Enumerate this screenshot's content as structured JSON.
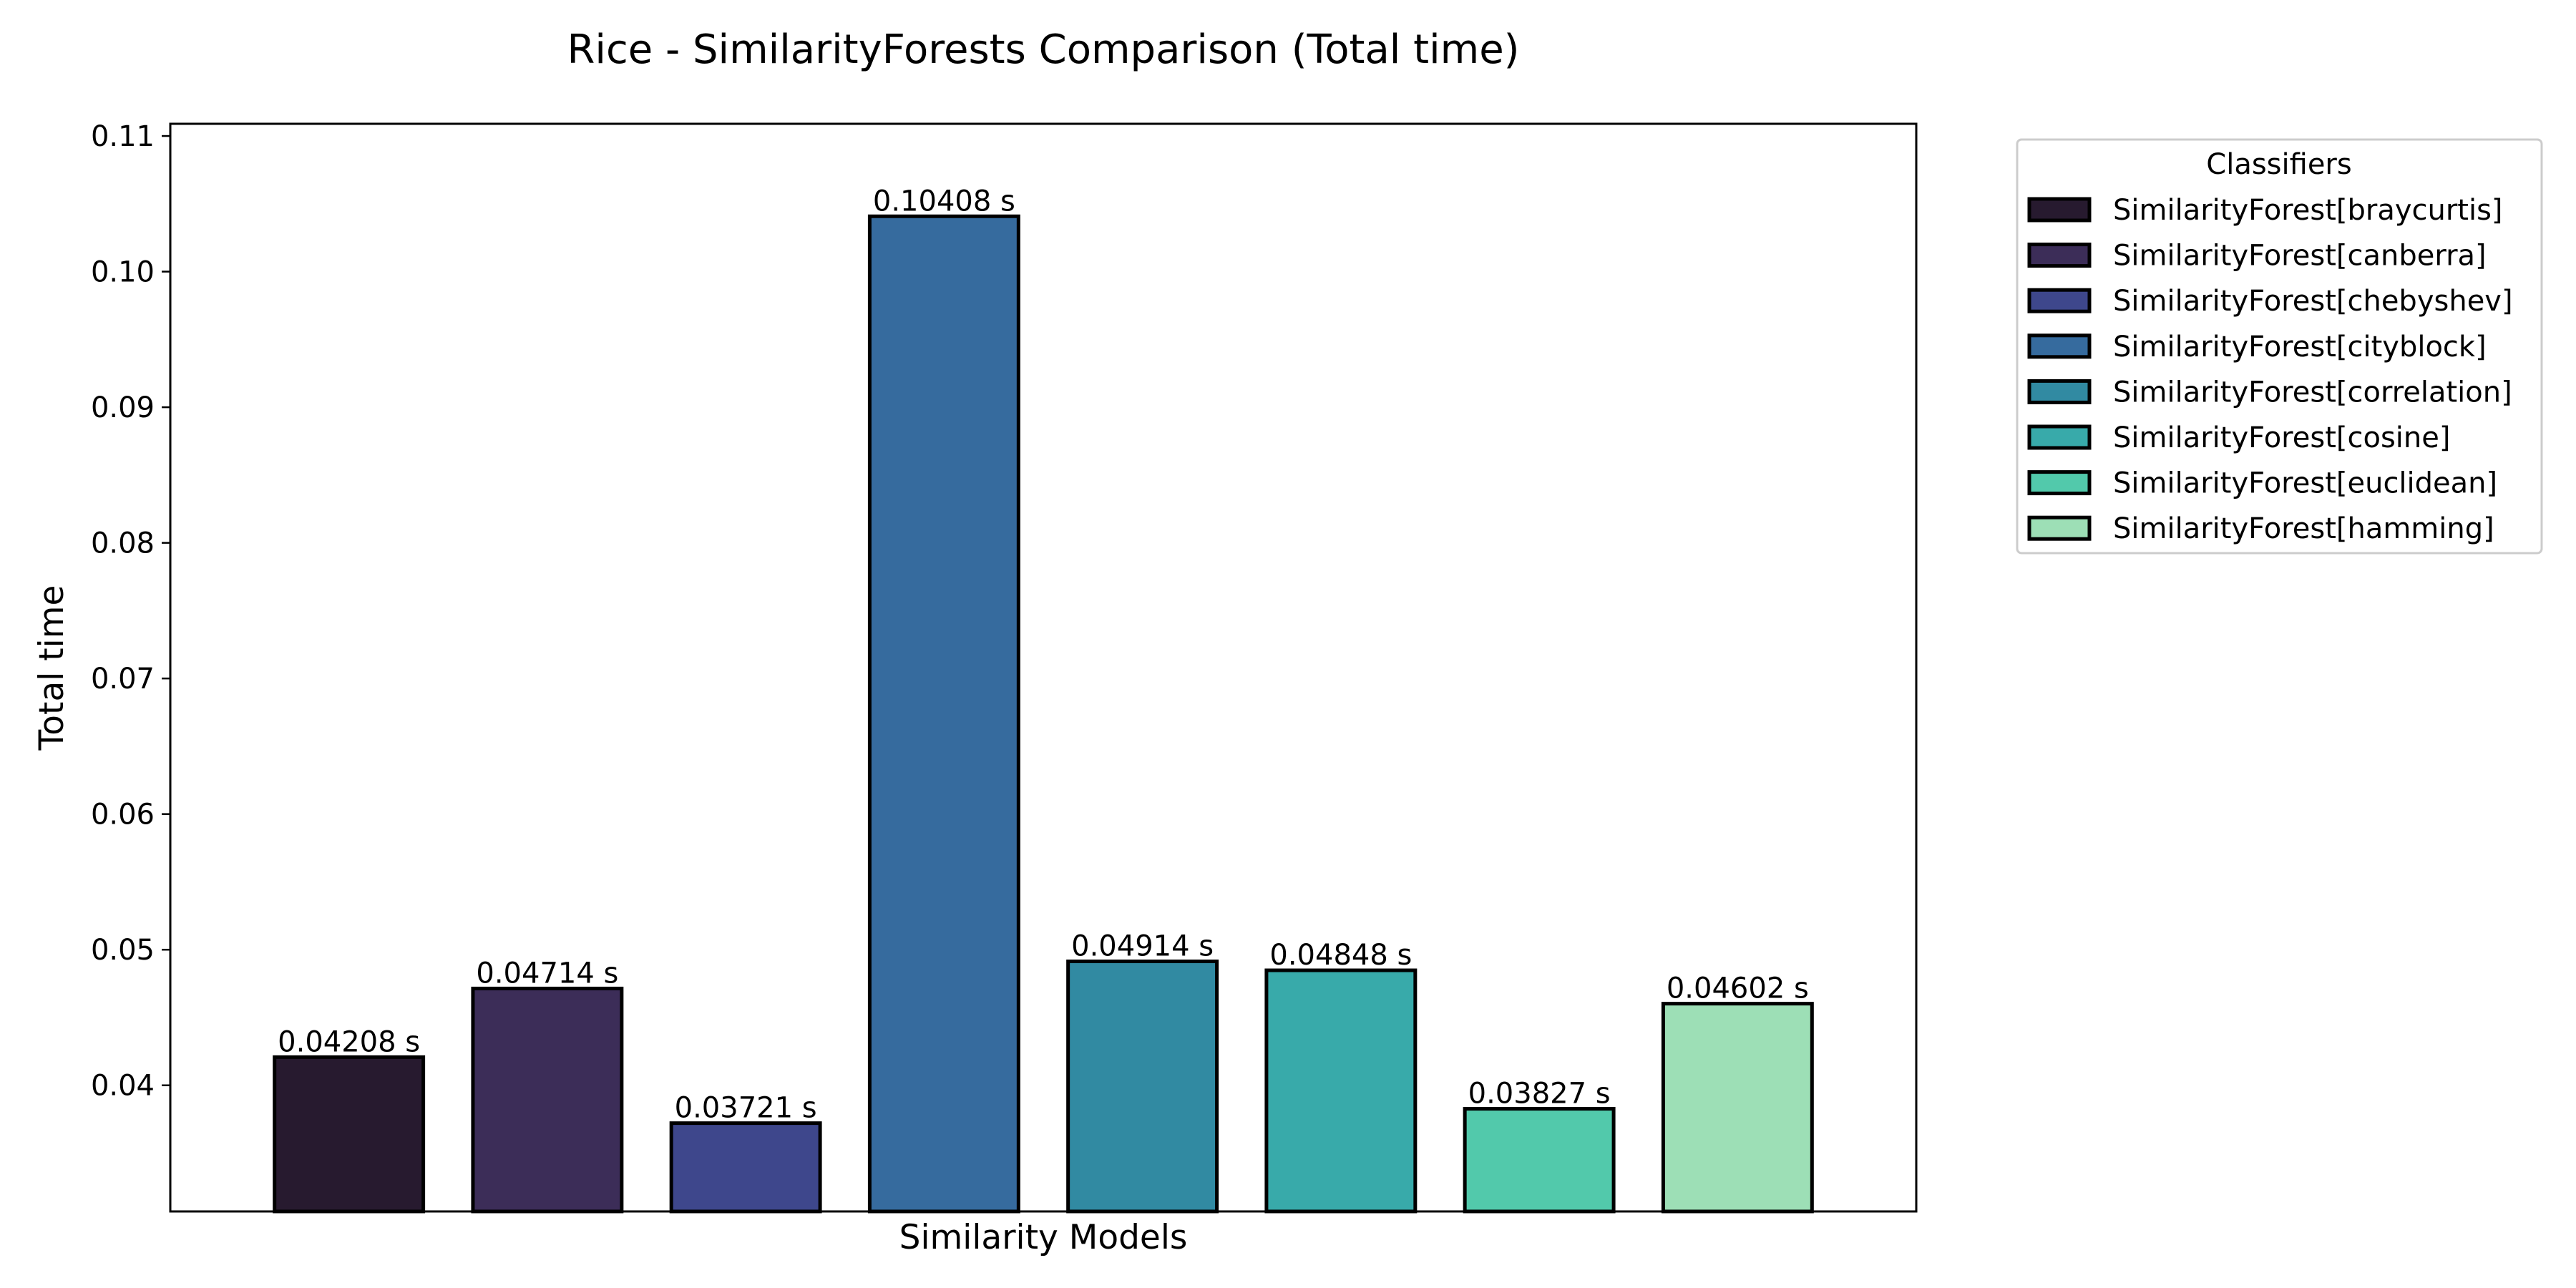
{
  "chart_data": {
    "type": "bar",
    "title": "Rice - SimilarityForests Comparison (Total time)",
    "xlabel": "Similarity Models",
    "ylabel": "Total time",
    "ylim": [
      0.0307,
      0.1109
    ],
    "yticks": [
      0.04,
      0.05,
      0.06,
      0.07,
      0.08,
      0.09,
      0.1,
      0.11
    ],
    "ytick_labels": [
      "0.04",
      "0.05",
      "0.06",
      "0.07",
      "0.08",
      "0.09",
      "0.10",
      "0.11"
    ],
    "categories": [
      "SimilarityForest[braycurtis]",
      "SimilarityForest[canberra]",
      "SimilarityForest[chebyshev]",
      "SimilarityForest[cityblock]",
      "SimilarityForest[correlation]",
      "SimilarityForest[cosine]",
      "SimilarityForest[euclidean]",
      "SimilarityForest[hamming]"
    ],
    "values": [
      0.04208,
      0.04714,
      0.03721,
      0.10408,
      0.04914,
      0.04848,
      0.03827,
      0.04602
    ],
    "value_labels": [
      "0.04208 s",
      "0.04714 s",
      "0.03721 s",
      "0.10408 s",
      "0.04914 s",
      "0.04848 s",
      "0.03827 s",
      "0.04602 s"
    ],
    "colors": [
      "#271a2f",
      "#3c2d58",
      "#3e478c",
      "#366b9e",
      "#318aa2",
      "#38aaaa",
      "#52c9ab",
      "#9ddfb6"
    ],
    "edge_color": "#000000",
    "grid": false,
    "legend": {
      "title": "Classifiers",
      "placement": "outside-top-right"
    }
  }
}
